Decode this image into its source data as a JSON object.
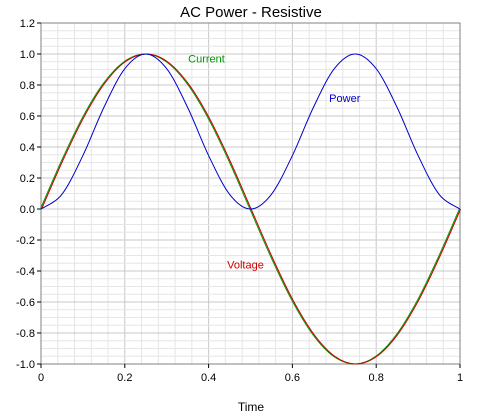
{
  "chart_data": {
    "type": "line",
    "title": "AC Power - Resistive",
    "xlabel": "Time",
    "ylabel": "",
    "xlim": [
      0,
      1
    ],
    "ylim": [
      -1.0,
      1.2
    ],
    "xticks": [
      "0",
      "0.2",
      "0.4",
      "0.6",
      "0.8",
      "1"
    ],
    "yticks": [
      "-1.0",
      "-0.8",
      "-0.6",
      "-0.4",
      "-0.2",
      "0.0",
      "0.2",
      "0.4",
      "0.6",
      "0.8",
      "1.0",
      "1.2"
    ],
    "grid": true,
    "x": [
      0,
      0.05,
      0.1,
      0.15,
      0.2,
      0.25,
      0.3,
      0.35,
      0.4,
      0.45,
      0.5,
      0.55,
      0.6,
      0.65,
      0.7,
      0.75,
      0.8,
      0.85,
      0.9,
      0.95,
      1.0
    ],
    "series": [
      {
        "name": "Current",
        "color": "#009900",
        "values": [
          0,
          0.309,
          0.588,
          0.809,
          0.951,
          1.0,
          0.951,
          0.809,
          0.588,
          0.309,
          0,
          -0.309,
          -0.588,
          -0.809,
          -0.951,
          -1.0,
          -0.951,
          -0.809,
          -0.588,
          -0.309,
          0
        ]
      },
      {
        "name": "Voltage",
        "color": "#cc0000",
        "values": [
          0,
          0.309,
          0.588,
          0.809,
          0.951,
          1.0,
          0.951,
          0.809,
          0.588,
          0.309,
          0,
          -0.309,
          -0.588,
          -0.809,
          -0.951,
          -1.0,
          -0.951,
          -0.809,
          -0.588,
          -0.309,
          0
        ]
      },
      {
        "name": "Power",
        "color": "#0000cc",
        "values": [
          0,
          0.095,
          0.345,
          0.655,
          0.905,
          1.0,
          0.905,
          0.655,
          0.345,
          0.095,
          0,
          0.095,
          0.345,
          0.655,
          0.905,
          1.0,
          0.905,
          0.655,
          0.345,
          0.095,
          0
        ]
      }
    ],
    "annotations": [
      {
        "text": "Current",
        "color": "#009900",
        "x": 0.395,
        "y": 0.945
      },
      {
        "text": "Power",
        "color": "#0000cc",
        "x": 0.725,
        "y": 0.69
      },
      {
        "text": "Voltage",
        "color": "#cc0000",
        "x": 0.488,
        "y": -0.385
      }
    ]
  }
}
